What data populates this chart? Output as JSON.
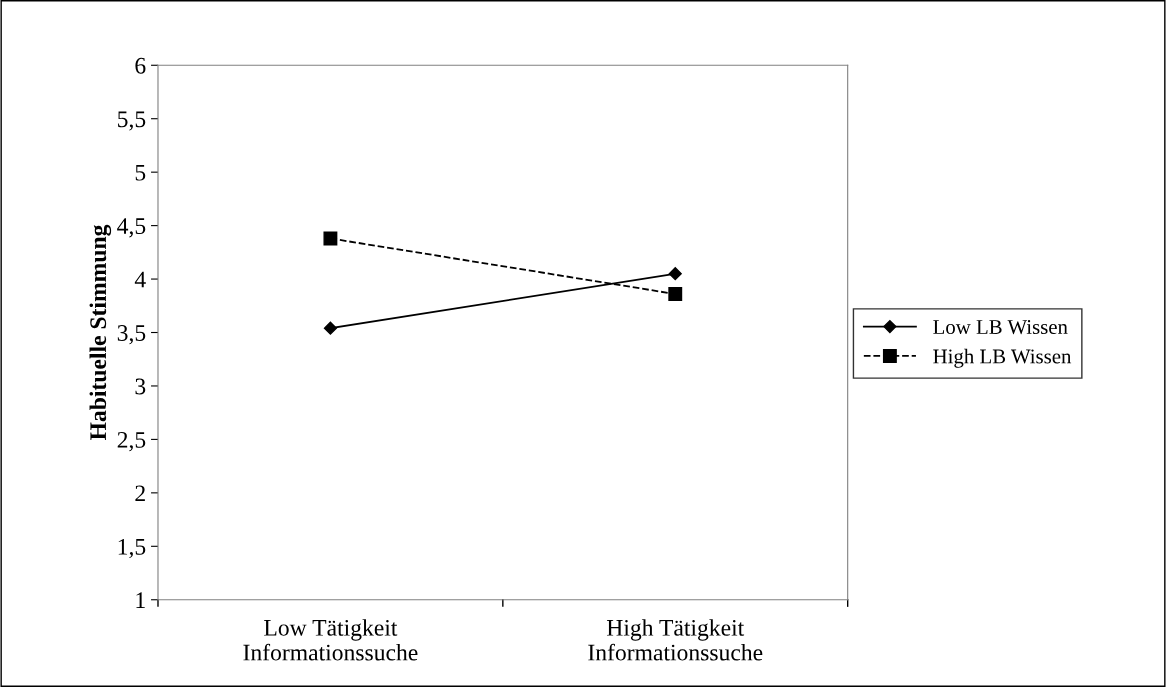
{
  "chart_data": {
    "type": "line",
    "ylabel": "Habituelle Stimmung",
    "categories": [
      "Low Tätigkeit\nInformationssuche",
      "High Tätigkeit\nInformationssuche"
    ],
    "series": [
      {
        "name": "Low LB Wissen",
        "color": "#000000",
        "values": [
          3.54,
          4.05
        ],
        "marker": "diamond",
        "line_style": "solid"
      },
      {
        "name": "High LB Wissen",
        "color": "#000000",
        "values": [
          4.38,
          3.86
        ],
        "marker": "square",
        "line_style": "dashed"
      }
    ],
    "ylim": [
      1,
      6
    ],
    "yticks": [
      1,
      {
        "value": 1.5,
        "label": "1,5"
      },
      2,
      {
        "value": 2.5,
        "label": "2,5"
      },
      3,
      {
        "value": 3.5,
        "label": "3,5"
      },
      4,
      {
        "value": 4.5,
        "label": "4,5"
      },
      5,
      {
        "value": 5.5,
        "label": "5,5"
      },
      6
    ],
    "grid": false,
    "legend": "right"
  }
}
